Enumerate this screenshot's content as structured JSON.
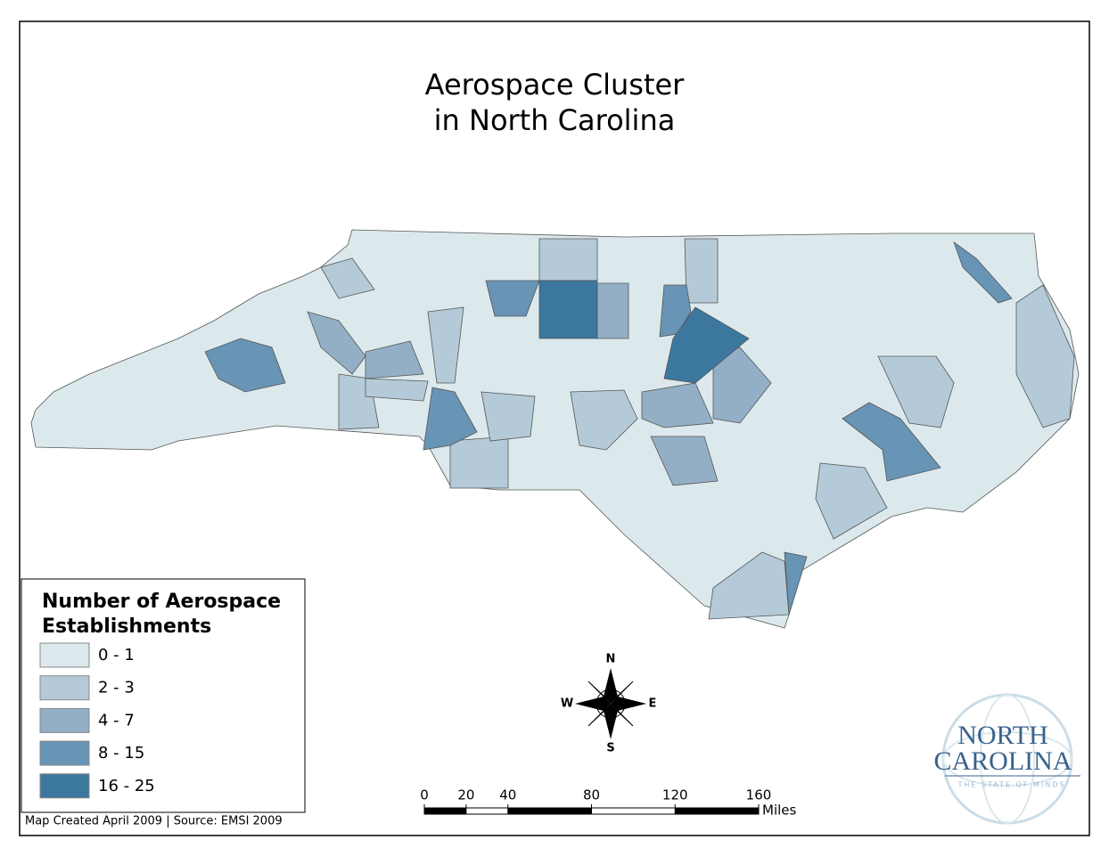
{
  "title": [
    "Aerospace Cluster",
    "in North Carolina"
  ],
  "legend": {
    "title": [
      "Number of Aerospace",
      "Establishments"
    ],
    "items": [
      {
        "label": "0 - 1",
        "color": "#dce9ec"
      },
      {
        "label": "2 - 3",
        "color": "#b4cad8"
      },
      {
        "label": "4 - 7",
        "color": "#93afc6"
      },
      {
        "label": "8 - 15",
        "color": "#6894b5"
      },
      {
        "label": "16 - 25",
        "color": "#3c779e"
      }
    ]
  },
  "compass": {
    "north": "N",
    "south": "S",
    "east": "E",
    "west": "W"
  },
  "scale_bar": {
    "ticks": [
      0,
      20,
      40,
      80,
      120,
      160
    ],
    "unit": "Miles"
  },
  "footer": "Map Created April 2009 | Source: EMSI 2009",
  "logo": {
    "line1": "NORTH",
    "line2": "CAROLINA",
    "tagline": "THE STATE OF MINDS"
  }
}
